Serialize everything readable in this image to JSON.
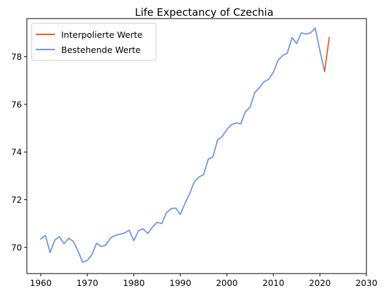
{
  "chart_data": {
    "type": "line",
    "title": "Life Expectancy of Czechia",
    "xlabel": "",
    "ylabel": "",
    "xlim": [
      1957,
      2030
    ],
    "ylim": [
      68.9,
      79.6
    ],
    "x_ticks": [
      1960,
      1970,
      1980,
      1990,
      2000,
      2010,
      2020,
      2030
    ],
    "y_ticks": [
      70,
      72,
      74,
      76,
      78
    ],
    "grid": false,
    "legend": "top-left",
    "series": [
      {
        "name": "Interpolierte Werte",
        "color": "#f05a28",
        "x": [
          2021,
          2022
        ],
        "y": [
          77.38,
          78.8
        ]
      },
      {
        "name": "Bestehende Werte",
        "color": "#6e96dc",
        "x": [
          1960,
          1961,
          1962,
          1963,
          1964,
          1965,
          1966,
          1967,
          1968,
          1969,
          1970,
          1971,
          1972,
          1973,
          1974,
          1975,
          1976,
          1977,
          1978,
          1979,
          1980,
          1981,
          1982,
          1983,
          1984,
          1985,
          1986,
          1987,
          1988,
          1989,
          1990,
          1991,
          1992,
          1993,
          1994,
          1995,
          1996,
          1997,
          1998,
          1999,
          2000,
          2001,
          2002,
          2003,
          2004,
          2005,
          2006,
          2007,
          2008,
          2009,
          2010,
          2011,
          2012,
          2013,
          2014,
          2015,
          2016,
          2017,
          2018,
          2019,
          2020,
          2021
        ],
        "y": [
          70.35,
          70.5,
          69.78,
          70.3,
          70.45,
          70.15,
          70.38,
          70.25,
          69.85,
          69.38,
          69.45,
          69.7,
          70.18,
          70.03,
          70.1,
          70.4,
          70.5,
          70.55,
          70.6,
          70.72,
          70.28,
          70.7,
          70.78,
          70.58,
          70.85,
          71.05,
          71.0,
          71.45,
          71.62,
          71.65,
          71.38,
          71.85,
          72.25,
          72.75,
          72.95,
          73.05,
          73.7,
          73.8,
          74.5,
          74.65,
          74.95,
          75.15,
          75.22,
          75.18,
          75.7,
          75.88,
          76.5,
          76.7,
          76.95,
          77.05,
          77.35,
          77.85,
          78.05,
          78.15,
          78.8,
          78.55,
          79.0,
          78.95,
          79.0,
          79.2,
          78.25,
          77.38
        ]
      }
    ]
  }
}
